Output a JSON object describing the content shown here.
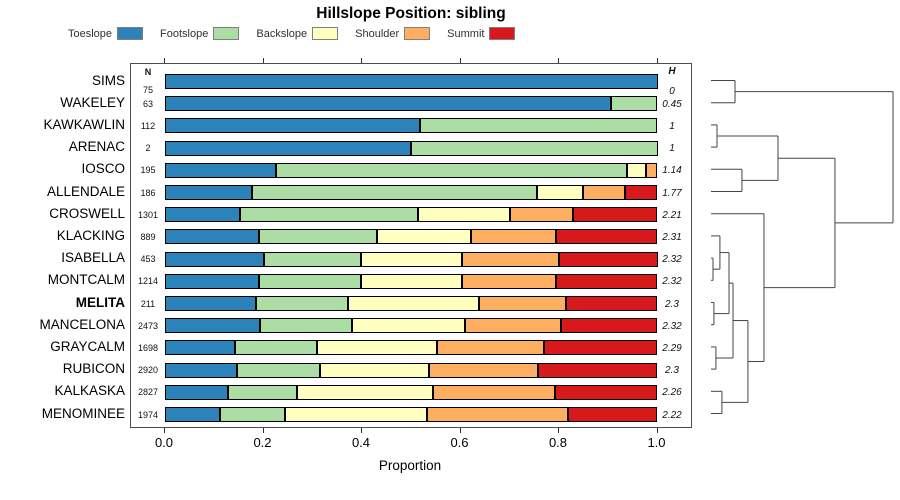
{
  "title": "Hillslope Position: sibling",
  "legend": {
    "items": [
      {
        "label": "Toeslope",
        "color": "#2B83BA"
      },
      {
        "label": "Footslope",
        "color": "#ABDDA4"
      },
      {
        "label": "Backslope",
        "color": "#FFFFBF"
      },
      {
        "label": "Shoulder",
        "color": "#FDAE61"
      },
      {
        "label": "Summit",
        "color": "#D7191C"
      }
    ]
  },
  "columns": {
    "n_header": "N",
    "h_header": "H"
  },
  "axis": {
    "xlabel": "Proportion",
    "xticks": [
      {
        "label": "0.0",
        "value": 0.0
      },
      {
        "label": "0.2",
        "value": 0.2
      },
      {
        "label": "0.4",
        "value": 0.4
      },
      {
        "label": "0.6",
        "value": 0.6
      },
      {
        "label": "0.8",
        "value": 0.8
      },
      {
        "label": "1.0",
        "value": 1.0
      }
    ]
  },
  "chart_data": {
    "type": "bar",
    "stacked": true,
    "orientation": "horizontal",
    "title": "Hillslope Position: sibling",
    "xlabel": "Proportion",
    "xlim": [
      0,
      1
    ],
    "legend_position": "top",
    "categories": [
      "Toeslope",
      "Footslope",
      "Backslope",
      "Shoulder",
      "Summit"
    ],
    "colors": [
      "#2B83BA",
      "#ABDDA4",
      "#FFFFBF",
      "#FDAE61",
      "#D7191C"
    ],
    "rows": [
      {
        "name": "SIMS",
        "n": 75,
        "h": "0",
        "emphasis": false,
        "values": [
          1.0,
          0.0,
          0.0,
          0.0,
          0.0
        ]
      },
      {
        "name": "WAKELEY",
        "n": 63,
        "h": "0.45",
        "emphasis": false,
        "values": [
          0.905,
          0.095,
          0.0,
          0.0,
          0.0
        ]
      },
      {
        "name": "KAWKAWLIN",
        "n": 112,
        "h": "1",
        "emphasis": false,
        "values": [
          0.518,
          0.482,
          0.0,
          0.0,
          0.0
        ]
      },
      {
        "name": "ARENAC",
        "n": 2,
        "h": "1",
        "emphasis": false,
        "values": [
          0.5,
          0.5,
          0.0,
          0.0,
          0.0
        ]
      },
      {
        "name": "IOSCO",
        "n": 195,
        "h": "1.14",
        "emphasis": false,
        "values": [
          0.225,
          0.713,
          0.039,
          0.023,
          0.0
        ]
      },
      {
        "name": "ALLENDALE",
        "n": 186,
        "h": "1.77",
        "emphasis": false,
        "values": [
          0.177,
          0.579,
          0.093,
          0.086,
          0.065
        ]
      },
      {
        "name": "CROSWELL",
        "n": 1301,
        "h": "2.21",
        "emphasis": false,
        "values": [
          0.152,
          0.362,
          0.187,
          0.127,
          0.172
        ]
      },
      {
        "name": "KLACKING",
        "n": 889,
        "h": "2.31",
        "emphasis": false,
        "values": [
          0.191,
          0.239,
          0.191,
          0.173,
          0.206
        ]
      },
      {
        "name": "ISABELLA",
        "n": 453,
        "h": "2.32",
        "emphasis": false,
        "values": [
          0.2,
          0.198,
          0.205,
          0.197,
          0.2
        ]
      },
      {
        "name": "MONTCALM",
        "n": 1214,
        "h": "2.32",
        "emphasis": false,
        "values": [
          0.19,
          0.208,
          0.206,
          0.19,
          0.206
        ]
      },
      {
        "name": "MELITA",
        "n": 211,
        "h": "2.3",
        "emphasis": true,
        "values": [
          0.184,
          0.187,
          0.267,
          0.176,
          0.186
        ]
      },
      {
        "name": "MANCELONA",
        "n": 2473,
        "h": "2.32",
        "emphasis": false,
        "values": [
          0.192,
          0.187,
          0.231,
          0.194,
          0.196
        ]
      },
      {
        "name": "GRAYCALM",
        "n": 1698,
        "h": "2.29",
        "emphasis": false,
        "values": [
          0.143,
          0.165,
          0.245,
          0.217,
          0.23
        ]
      },
      {
        "name": "RUBICON",
        "n": 2920,
        "h": "2.3",
        "emphasis": false,
        "values": [
          0.147,
          0.167,
          0.223,
          0.221,
          0.242
        ]
      },
      {
        "name": "KALKASKA",
        "n": 2827,
        "h": "2.26",
        "emphasis": false,
        "values": [
          0.127,
          0.142,
          0.276,
          0.247,
          0.208
        ]
      },
      {
        "name": "MENOMINEE",
        "n": 1974,
        "h": "2.22",
        "emphasis": false,
        "values": [
          0.112,
          0.131,
          0.288,
          0.288,
          0.181
        ]
      }
    ]
  },
  "dendrogram": {
    "line_color": "#444444",
    "merges": [
      {
        "id": "A",
        "a": "L0",
        "b": "L1",
        "h": 0.132
      },
      {
        "id": "B",
        "a": "L2",
        "b": "L3",
        "h": 0.033
      },
      {
        "id": "C",
        "a": "L4",
        "b": "L5",
        "h": 0.17
      },
      {
        "id": "D",
        "a": "B",
        "b": "C",
        "h": 0.368
      },
      {
        "id": "M1",
        "a": "L8",
        "b": "L9",
        "h": 0.011
      },
      {
        "id": "M2",
        "a": "L7",
        "b": "M1",
        "h": 0.049
      },
      {
        "id": "M3",
        "a": "L10",
        "b": "L11",
        "h": 0.016
      },
      {
        "id": "M4",
        "a": "M2",
        "b": "M3",
        "h": 0.099
      },
      {
        "id": "M5",
        "a": "L12",
        "b": "L13",
        "h": 0.027
      },
      {
        "id": "M6",
        "a": "M4",
        "b": "M5",
        "h": 0.121
      },
      {
        "id": "M7",
        "a": "L14",
        "b": "L15",
        "h": 0.06
      },
      {
        "id": "M8",
        "a": "M6",
        "b": "M7",
        "h": 0.203
      },
      {
        "id": "M9",
        "a": "L6",
        "b": "M8",
        "h": 0.291
      },
      {
        "id": "E",
        "a": "D",
        "b": "M9",
        "h": 0.681
      },
      {
        "id": "ROOT",
        "a": "A",
        "b": "E",
        "h": 1.0
      }
    ]
  }
}
